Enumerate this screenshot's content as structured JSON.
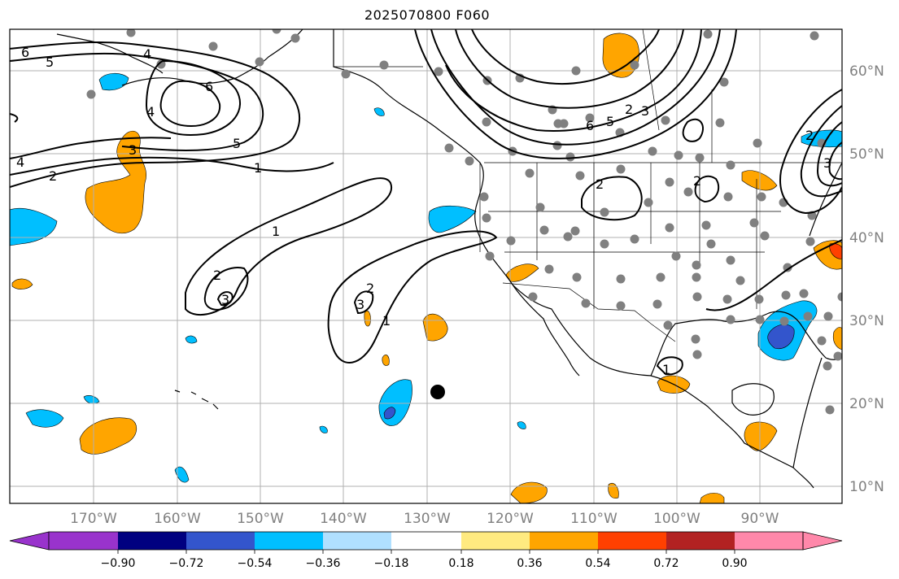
{
  "title": "2025070800 F060",
  "map": {
    "lon_labels": [
      "170°W",
      "160°W",
      "150°W",
      "140°W",
      "130°W",
      "120°W",
      "110°W",
      "100°W",
      "90°W"
    ],
    "lat_labels": [
      "60°N",
      "50°N",
      "40°N",
      "30°N",
      "20°N",
      "10°N"
    ],
    "contour_labels": [
      "6",
      "5",
      "4",
      "4",
      "6",
      "5",
      "3",
      "4",
      "2",
      "1",
      "1",
      "2",
      "3",
      "2",
      "3",
      "1",
      "2",
      "3",
      "5",
      "6",
      "2",
      "2",
      "1",
      "2",
      "3"
    ],
    "colors": {
      "contour": "#000000",
      "station_dots": "#808080",
      "grid": "#b0b0b0"
    }
  },
  "colorbar": {
    "tick_labels": [
      "−0.90",
      "−0.72",
      "−0.54",
      "−0.36",
      "−0.18",
      "0.18",
      "0.36",
      "0.54",
      "0.72",
      "0.90"
    ],
    "colors": [
      "#9933cc",
      "#000080",
      "#3355cc",
      "#00bfff",
      "#b0e0ff",
      "#ffffff",
      "#ffea80",
      "#ffa500",
      "#ff4000",
      "#b22222",
      "#ff88aa"
    ]
  }
}
